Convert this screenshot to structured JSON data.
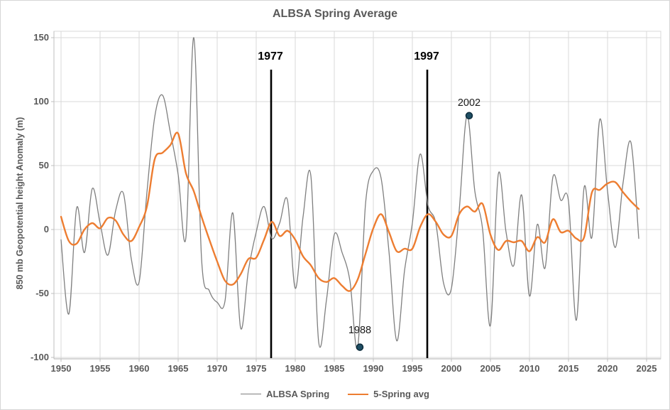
{
  "title": "ALBSA Spring Average",
  "y_axis": {
    "title": "850 mb Geopotential height Anomaly (m)",
    "ticks": [
      150,
      100,
      50,
      0,
      -50,
      -100
    ],
    "min": -100,
    "max": 150
  },
  "x_axis": {
    "tick_labels": [
      "1950",
      "1955",
      "1960",
      "1965",
      "1970",
      "1975",
      "1980",
      "1985",
      "1990",
      "1995",
      "2000",
      "2005",
      "2010",
      "2015",
      "2020",
      "2025"
    ],
    "tick_years": [
      1950,
      1955,
      1960,
      1965,
      1970,
      1975,
      1980,
      1985,
      1990,
      1995,
      2000,
      2005,
      2010,
      2015,
      2020,
      2025
    ]
  },
  "legend": {
    "items": [
      {
        "label": "ALBSA Spring",
        "color": "#7F7F7F",
        "thickness": 1.5
      },
      {
        "label": "5-Spring avg",
        "color": "#ED7D31",
        "thickness": 2.5
      }
    ]
  },
  "annotations": {
    "vlines": [
      {
        "label": "1977",
        "year": 1977
      },
      {
        "label": "1997",
        "year": 1997
      }
    ],
    "marked_points": [
      {
        "label": "2002",
        "year": 2002,
        "value": 89,
        "label_offset_y": -18
      },
      {
        "label": "1988",
        "year": 1988,
        "value": -92,
        "label_offset_y": -24
      }
    ],
    "marker_fill": "#1F4E63",
    "marker_stroke": "#0C2B3B"
  },
  "colors": {
    "gridline": "#D9D9D9",
    "axis_line": "#BFBFBF",
    "text": "#595959",
    "vline": "#000000"
  },
  "chart_data": {
    "type": "line",
    "title": "ALBSA Spring Average",
    "xlabel": "",
    "ylabel": "850 mb Geopotential height Anomaly (m)",
    "ylim": [
      -100,
      150
    ],
    "xlim": [
      1950,
      2025
    ],
    "grid": true,
    "legend_position": "bottom",
    "years": [
      1950,
      1951,
      1952,
      1953,
      1954,
      1955,
      1956,
      1957,
      1958,
      1959,
      1960,
      1961,
      1962,
      1963,
      1964,
      1965,
      1966,
      1967,
      1968,
      1969,
      1970,
      1971,
      1972,
      1973,
      1974,
      1975,
      1976,
      1977,
      1978,
      1979,
      1980,
      1981,
      1982,
      1983,
      1984,
      1985,
      1986,
      1987,
      1988,
      1989,
      1990,
      1991,
      1992,
      1993,
      1994,
      1995,
      1996,
      1997,
      1998,
      1999,
      2000,
      2001,
      2002,
      2003,
      2004,
      2005,
      2006,
      2007,
      2008,
      2009,
      2010,
      2011,
      2012,
      2013,
      2014,
      2015,
      2016,
      2017,
      2018,
      2019,
      2020,
      2021,
      2022,
      2023,
      2024
    ],
    "series": [
      {
        "name": "ALBSA Spring",
        "color": "#7F7F7F",
        "width": 1.3,
        "values": [
          -8,
          -66,
          17,
          -18,
          32,
          5,
          -20,
          15,
          28,
          -23,
          -41,
          29,
          88,
          105,
          76,
          43,
          -6,
          150,
          -23,
          -48,
          -57,
          -56,
          13,
          -77,
          -32,
          -2,
          18,
          -7,
          5,
          23,
          -46,
          10,
          42,
          -88,
          -55,
          -4,
          -18,
          -40,
          -92,
          20,
          46,
          40,
          -17,
          -87,
          -32,
          5,
          59,
          19,
          5,
          -42,
          -46,
          15,
          89,
          30,
          0,
          -75,
          43,
          -2,
          -28,
          27,
          -52,
          4,
          -30,
          41,
          23,
          22,
          -71,
          33,
          -6,
          86,
          30,
          -14,
          37,
          68,
          -7
        ]
      },
      {
        "name": "5-Spring avg",
        "color": "#ED7D31",
        "width": 2.4,
        "values": [
          10,
          -9,
          -11,
          0,
          5,
          1,
          9,
          7,
          -4,
          -9,
          2,
          18,
          55,
          60,
          66,
          75,
          44,
          30,
          10,
          -8,
          -25,
          -40,
          -43,
          -35,
          -23,
          -22,
          -8,
          6,
          -5,
          -1,
          -8,
          -21,
          -28,
          -38,
          -41,
          -38,
          -44,
          -48,
          -39,
          -19,
          1,
          12,
          -2,
          -17,
          -15,
          -15,
          2,
          12,
          6,
          -4,
          -5,
          12,
          18,
          14,
          20,
          -4,
          -16,
          -9,
          -10,
          -9,
          -17,
          -6,
          -10,
          8,
          -2,
          -1,
          -7,
          -6,
          29,
          31,
          36,
          37,
          29,
          22,
          16
        ]
      }
    ]
  }
}
